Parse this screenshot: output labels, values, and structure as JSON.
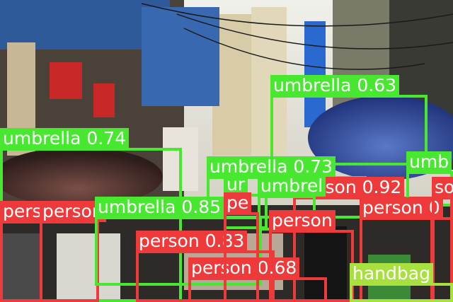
{
  "colors": {
    "umbrella": "#48e830",
    "person": "#ee3a3a",
    "handbag": "#a8e040"
  },
  "detections": [
    {
      "label": "umbrella",
      "score": "0.63",
      "text": "umbrella 0.63"
    },
    {
      "label": "umbrella",
      "score": "0.74",
      "text": "umbrella 0.74"
    },
    {
      "label": "umbrella",
      "score": "0.73",
      "text": "umbrella 0.73"
    },
    {
      "label": "umbrella",
      "score": "0.85",
      "text": "umbrella 0.85"
    },
    {
      "label": "person",
      "score": "0.92",
      "text": "person 0.92"
    },
    {
      "label": "person",
      "score": "0.83",
      "text": "person 0.83"
    },
    {
      "label": "person",
      "score": "0.68",
      "text": "person 0.68"
    },
    {
      "label": "person",
      "score": "",
      "text": "person"
    },
    {
      "label": "person",
      "score": "",
      "text": "person"
    },
    {
      "label": "person",
      "score": "",
      "text": "pers"
    },
    {
      "label": "person",
      "score": "",
      "text": "person 0"
    },
    {
      "label": "umbrella",
      "score": "",
      "text": "umbrel"
    },
    {
      "label": "umbrella",
      "score": "",
      "text": "umb"
    },
    {
      "label": "umbrella",
      "score": "",
      "text": "ur"
    },
    {
      "label": "person",
      "score": "",
      "text": "pe"
    },
    {
      "label": "person",
      "score": "",
      "text": "so"
    },
    {
      "label": "handbag",
      "score": "",
      "text": "handbag"
    }
  ]
}
